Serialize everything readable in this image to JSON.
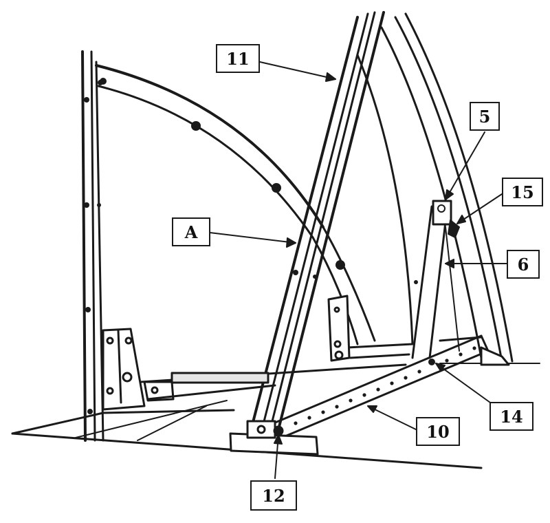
{
  "diagram": {
    "line_color": "#1a1a1a",
    "callouts": [
      {
        "id": "11",
        "label": "11"
      },
      {
        "id": "a",
        "label": "A"
      },
      {
        "id": "5",
        "label": "5"
      },
      {
        "id": "15",
        "label": "15"
      },
      {
        "id": "6",
        "label": "6"
      },
      {
        "id": "14",
        "label": "14"
      },
      {
        "id": "10",
        "label": "10"
      },
      {
        "id": "12",
        "label": "12"
      }
    ]
  }
}
